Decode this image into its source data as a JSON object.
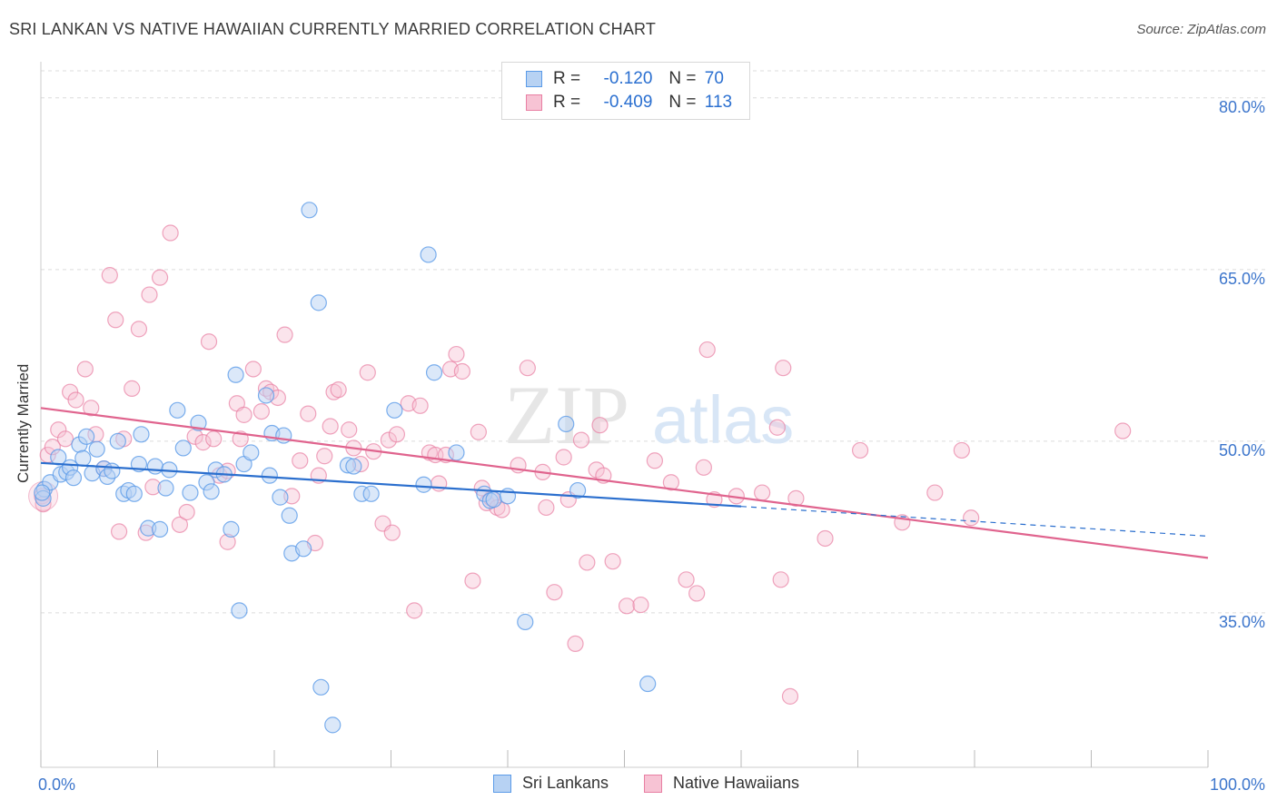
{
  "title": "SRI LANKAN VS NATIVE HAWAIIAN CURRENTLY MARRIED CORRELATION CHART",
  "source": "Source: ZipAtlas.com",
  "watermark": "ZIPatlas",
  "legend": {
    "rows": [
      {
        "r_label": "R =",
        "r_value": "-0.120",
        "n_label": "N =",
        "n_value": "70"
      },
      {
        "r_label": "R =",
        "r_value": "-0.409",
        "n_label": "N =",
        "n_value": "113"
      }
    ]
  },
  "bottom_legend": {
    "series1": "Sri Lankans",
    "series2": "Native Hawaiians"
  },
  "colors": {
    "blue": "#5b9be8",
    "blue_fill": "#b7d2f3",
    "pink": "#e87fa3",
    "pink_fill": "#f7c3d4",
    "blue_line": "#2b6fce",
    "pink_line": "#e0648e",
    "tick_text": "#3d76cc"
  },
  "chart_data": {
    "type": "scatter",
    "xlabel": "",
    "ylabel": "Currently Married",
    "xlim": [
      0,
      100
    ],
    "ylim": [
      21.5,
      83
    ],
    "x_tick_labels": [
      "0.0%",
      "100.0%"
    ],
    "y_ticks": [
      35,
      50,
      65,
      80
    ],
    "y_tick_labels": [
      "35.0%",
      "50.0%",
      "65.0%",
      "80.0%"
    ],
    "series": [
      {
        "name": "Sri Lankans",
        "R": -0.12,
        "N": 70,
        "trend": {
          "x0": 0,
          "y0": 48.1,
          "x1": 60,
          "y1": 44.3,
          "dashed_to_x": 100,
          "dashed_to_y": 41.7
        },
        "points": [
          [
            0.3,
            45.8
          ],
          [
            0.8,
            46.4
          ],
          [
            1.5,
            48.6
          ],
          [
            1.7,
            47.1
          ],
          [
            2.2,
            47.3
          ],
          [
            2.5,
            47.7
          ],
          [
            2.8,
            46.8
          ],
          [
            3.3,
            49.7
          ],
          [
            3.6,
            48.5
          ],
          [
            3.9,
            50.4
          ],
          [
            4.4,
            47.2
          ],
          [
            4.8,
            49.3
          ],
          [
            5.4,
            47.6
          ],
          [
            5.7,
            46.9
          ],
          [
            6.1,
            47.4
          ],
          [
            6.6,
            50.0
          ],
          [
            7.1,
            45.4
          ],
          [
            7.5,
            45.7
          ],
          [
            8.0,
            45.4
          ],
          [
            8.4,
            48.0
          ],
          [
            8.6,
            50.6
          ],
          [
            9.2,
            42.4
          ],
          [
            9.8,
            47.8
          ],
          [
            10.2,
            42.3
          ],
          [
            10.7,
            45.9
          ],
          [
            11.0,
            47.5
          ],
          [
            11.7,
            52.7
          ],
          [
            12.2,
            49.4
          ],
          [
            12.8,
            45.5
          ],
          [
            13.5,
            51.6
          ],
          [
            14.2,
            46.4
          ],
          [
            14.6,
            45.6
          ],
          [
            15.0,
            47.5
          ],
          [
            15.7,
            47.1
          ],
          [
            16.3,
            42.3
          ],
          [
            16.7,
            55.8
          ],
          [
            17.0,
            35.2
          ],
          [
            17.4,
            48.0
          ],
          [
            18.0,
            49.0
          ],
          [
            19.3,
            54.0
          ],
          [
            19.6,
            47.0
          ],
          [
            19.8,
            50.7
          ],
          [
            20.5,
            45.1
          ],
          [
            20.8,
            50.5
          ],
          [
            21.3,
            43.5
          ],
          [
            21.5,
            40.2
          ],
          [
            22.5,
            40.6
          ],
          [
            23.0,
            70.2
          ],
          [
            23.8,
            62.1
          ],
          [
            24.0,
            28.5
          ],
          [
            25.0,
            25.2
          ],
          [
            26.3,
            47.9
          ],
          [
            26.8,
            47.8
          ],
          [
            27.5,
            45.4
          ],
          [
            28.3,
            45.4
          ],
          [
            30.3,
            52.7
          ],
          [
            32.8,
            46.2
          ],
          [
            33.2,
            66.3
          ],
          [
            33.7,
            56.0
          ],
          [
            35.6,
            49.0
          ],
          [
            38.0,
            45.4
          ],
          [
            38.5,
            44.8
          ],
          [
            38.8,
            44.9
          ],
          [
            40.0,
            45.2
          ],
          [
            41.5,
            34.2
          ],
          [
            45.0,
            51.5
          ],
          [
            46.0,
            45.7
          ],
          [
            52.0,
            28.8
          ],
          [
            0.2,
            45.0
          ],
          [
            0.1,
            45.5
          ]
        ]
      },
      {
        "name": "Native Hawaiians",
        "R": -0.409,
        "N": 113,
        "trend": {
          "x0": 0,
          "y0": 52.9,
          "x1": 100,
          "y1": 39.8
        },
        "points": [
          [
            0.6,
            48.8
          ],
          [
            1.5,
            51.0
          ],
          [
            2.1,
            50.2
          ],
          [
            2.5,
            54.3
          ],
          [
            3.0,
            53.6
          ],
          [
            3.8,
            56.3
          ],
          [
            4.3,
            52.9
          ],
          [
            4.7,
            50.6
          ],
          [
            5.4,
            47.6
          ],
          [
            5.9,
            64.5
          ],
          [
            6.4,
            60.6
          ],
          [
            6.7,
            42.1
          ],
          [
            7.1,
            50.2
          ],
          [
            7.8,
            54.6
          ],
          [
            8.4,
            59.8
          ],
          [
            9.0,
            42.0
          ],
          [
            9.3,
            62.8
          ],
          [
            9.6,
            46.0
          ],
          [
            10.2,
            64.3
          ],
          [
            11.1,
            68.2
          ],
          [
            11.9,
            42.7
          ],
          [
            12.5,
            43.8
          ],
          [
            13.2,
            50.4
          ],
          [
            13.9,
            49.9
          ],
          [
            14.4,
            58.7
          ],
          [
            14.8,
            50.2
          ],
          [
            15.3,
            47.0
          ],
          [
            16.0,
            47.4
          ],
          [
            16.8,
            53.3
          ],
          [
            17.1,
            50.2
          ],
          [
            17.4,
            52.3
          ],
          [
            18.2,
            56.3
          ],
          [
            18.9,
            52.6
          ],
          [
            19.3,
            54.6
          ],
          [
            19.7,
            54.3
          ],
          [
            20.3,
            53.8
          ],
          [
            20.9,
            59.3
          ],
          [
            21.5,
            45.2
          ],
          [
            22.2,
            48.3
          ],
          [
            22.9,
            52.4
          ],
          [
            23.5,
            41.1
          ],
          [
            23.8,
            47.0
          ],
          [
            24.3,
            48.7
          ],
          [
            25.1,
            54.3
          ],
          [
            25.5,
            54.5
          ],
          [
            26.4,
            51.0
          ],
          [
            26.8,
            49.4
          ],
          [
            27.4,
            48.0
          ],
          [
            28.0,
            56.0
          ],
          [
            28.5,
            49.1
          ],
          [
            29.3,
            42.8
          ],
          [
            29.8,
            50.1
          ],
          [
            30.1,
            42.0
          ],
          [
            30.5,
            50.6
          ],
          [
            31.5,
            53.3
          ],
          [
            32.0,
            35.2
          ],
          [
            32.5,
            53.1
          ],
          [
            33.3,
            49.0
          ],
          [
            33.8,
            48.8
          ],
          [
            34.1,
            46.3
          ],
          [
            34.7,
            48.8
          ],
          [
            35.1,
            56.3
          ],
          [
            35.6,
            57.6
          ],
          [
            36.1,
            56.1
          ],
          [
            37.0,
            37.8
          ],
          [
            37.5,
            50.8
          ],
          [
            38.2,
            44.6
          ],
          [
            38.6,
            45.0
          ],
          [
            39.1,
            44.2
          ],
          [
            39.5,
            44.0
          ],
          [
            40.9,
            47.9
          ],
          [
            41.7,
            56.4
          ],
          [
            43.0,
            47.3
          ],
          [
            43.3,
            44.2
          ],
          [
            44.0,
            36.8
          ],
          [
            44.8,
            48.6
          ],
          [
            45.2,
            44.9
          ],
          [
            45.8,
            32.3
          ],
          [
            46.3,
            50.1
          ],
          [
            46.8,
            39.4
          ],
          [
            47.6,
            47.5
          ],
          [
            47.9,
            51.4
          ],
          [
            49.0,
            39.5
          ],
          [
            50.2,
            35.6
          ],
          [
            51.4,
            35.7
          ],
          [
            52.6,
            48.3
          ],
          [
            54.0,
            46.4
          ],
          [
            55.3,
            37.9
          ],
          [
            56.2,
            36.7
          ],
          [
            56.8,
            47.7
          ],
          [
            57.1,
            58.0
          ],
          [
            57.7,
            44.9
          ],
          [
            59.6,
            45.2
          ],
          [
            61.8,
            45.5
          ],
          [
            63.1,
            51.2
          ],
          [
            63.4,
            37.9
          ],
          [
            63.6,
            56.4
          ],
          [
            64.2,
            27.7
          ],
          [
            64.7,
            45.0
          ],
          [
            67.2,
            41.5
          ],
          [
            70.2,
            49.2
          ],
          [
            73.8,
            42.9
          ],
          [
            76.6,
            45.5
          ],
          [
            78.9,
            49.2
          ],
          [
            79.7,
            43.3
          ],
          [
            92.7,
            50.9
          ],
          [
            0.1,
            45.2
          ],
          [
            0.2,
            44.5
          ],
          [
            1.0,
            49.5
          ],
          [
            24.8,
            51.3
          ],
          [
            16.0,
            41.2
          ],
          [
            48.2,
            47.0
          ],
          [
            37.8,
            45.9
          ]
        ]
      }
    ]
  }
}
